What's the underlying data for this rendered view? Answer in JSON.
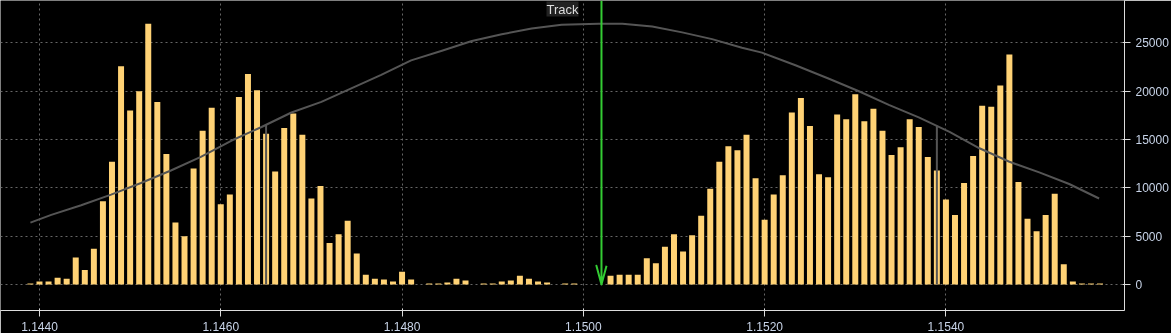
{
  "chart_data": {
    "type": "histogram",
    "xlim": [
      1.14357,
      1.15597
    ],
    "ylim": [
      -2700,
      29400
    ],
    "xticks": [
      {
        "value": 1.144,
        "label": "1.1440"
      },
      {
        "value": 1.146,
        "label": "1.1460"
      },
      {
        "value": 1.148,
        "label": "1.1480"
      },
      {
        "value": 1.15,
        "label": "1.1500"
      },
      {
        "value": 1.152,
        "label": "1.1520"
      },
      {
        "value": 1.154,
        "label": "1.1540"
      }
    ],
    "yticks": [
      0,
      5000,
      10000,
      15000,
      20000,
      25000
    ],
    "grid": true,
    "annotations": [
      "Track"
    ],
    "ref_lines": [
      {
        "axis": "x",
        "value": 1.1465,
        "color": "#555555"
      },
      {
        "axis": "x",
        "value": 1.1539,
        "color": "#555555"
      },
      {
        "axis": "x",
        "value": 1.1502,
        "color": "#33cc33"
      }
    ],
    "series": [
      {
        "color": "#ffd275",
        "bins": [
          1.14385,
          1.14395,
          1.14405,
          1.14415,
          1.14425,
          1.14435,
          1.14445,
          1.14455,
          1.14465,
          1.14475,
          1.14485,
          1.14495,
          1.14505,
          1.14515,
          1.14525,
          1.14535,
          1.14545,
          1.14555,
          1.14565,
          1.14575,
          1.14585,
          1.14595,
          1.14605,
          1.14615,
          1.14625,
          1.14635,
          1.14645,
          1.14655,
          1.14665,
          1.14675,
          1.14685,
          1.14695,
          1.14705,
          1.14715,
          1.14725,
          1.14735,
          1.14745,
          1.14755,
          1.14765,
          1.14775,
          1.14785,
          1.14795,
          1.14805,
          1.14815,
          1.14825,
          1.14835,
          1.14845,
          1.14855,
          1.14865,
          1.14875,
          1.14885,
          1.14895,
          1.14905,
          1.14915,
          1.14925,
          1.14935,
          1.14945,
          1.14955,
          1.14965,
          1.14975,
          1.14985,
          1.14995,
          1.15005,
          1.15015,
          1.15025,
          1.15035,
          1.15045,
          1.15055,
          1.15065,
          1.15075,
          1.15085,
          1.15095,
          1.15105,
          1.15115,
          1.15125,
          1.15135,
          1.15145,
          1.15155,
          1.15165,
          1.15175,
          1.15185,
          1.15195,
          1.15205,
          1.15215,
          1.15225,
          1.15235,
          1.15245,
          1.15255,
          1.15265,
          1.15275,
          1.15285,
          1.15295,
          1.15305,
          1.15315,
          1.15325,
          1.15335,
          1.15345,
          1.15355,
          1.15365,
          1.15375,
          1.15385,
          1.15395,
          1.15405,
          1.15415,
          1.15425,
          1.15435,
          1.15445,
          1.15455,
          1.15465,
          1.15475,
          1.15485,
          1.15495,
          1.15505,
          1.15515,
          1.15525,
          1.15535,
          1.15545,
          1.15555,
          1.15565,
          1.15575
        ],
        "values": [
          100,
          300,
          300,
          700,
          600,
          2800,
          1500,
          3700,
          8600,
          12700,
          22600,
          18000,
          20000,
          27000,
          18900,
          13500,
          6400,
          5000,
          12000,
          15900,
          18300,
          8300,
          9300,
          19400,
          21800,
          20100,
          15600,
          11700,
          16200,
          17700,
          15500,
          8900,
          10200,
          4300,
          5200,
          6600,
          3200,
          1000,
          600,
          500,
          300,
          1300,
          500,
          0,
          100,
          100,
          200,
          600,
          400,
          0,
          100,
          100,
          300,
          400,
          900,
          600,
          300,
          200,
          0,
          100,
          100,
          0,
          0,
          null,
          900,
          1000,
          1000,
          1000,
          2700,
          2200,
          3900,
          5200,
          3400,
          5100,
          7100,
          9900,
          12700,
          14300,
          13900,
          15500,
          11000,
          6700,
          9300,
          11300,
          17800,
          19300,
          16400,
          11400,
          11100,
          17600,
          17100,
          19700,
          16900,
          18200,
          15900,
          13400,
          14200,
          17100,
          16300,
          13200,
          11800,
          8800,
          7200,
          10500,
          13300,
          18500,
          18400,
          20600,
          23800,
          10600,
          6800,
          5500,
          7200,
          9400,
          2100,
          300,
          100,
          100,
          100
        ]
      },
      {
        "type": "line",
        "color": "#555555",
        "x": [
          1.1439,
          1.14413,
          1.14446,
          1.14479,
          1.14512,
          1.14545,
          1.14578,
          1.14612,
          1.14645,
          1.14678,
          1.14711,
          1.14744,
          1.14777,
          1.1481,
          1.14844,
          1.14877,
          1.1491,
          1.14943,
          1.14976,
          1.15017,
          1.15043,
          1.15076,
          1.15109,
          1.15142,
          1.15175,
          1.15197,
          1.15234,
          1.15271,
          1.15304,
          1.15337,
          1.1537,
          1.15404,
          1.15437,
          1.1547,
          1.15503,
          1.15536,
          1.15569
        ],
        "values": [
          6400,
          7200,
          8200,
          9300,
          10500,
          11800,
          13200,
          14900,
          16300,
          17800,
          18900,
          20300,
          21700,
          23200,
          24200,
          25200,
          25900,
          26500,
          26900,
          27000,
          27000,
          26700,
          26100,
          25400,
          24500,
          24000,
          22700,
          21300,
          20000,
          18600,
          17300,
          15800,
          14100,
          12700,
          11600,
          10400,
          8900
        ]
      }
    ]
  }
}
